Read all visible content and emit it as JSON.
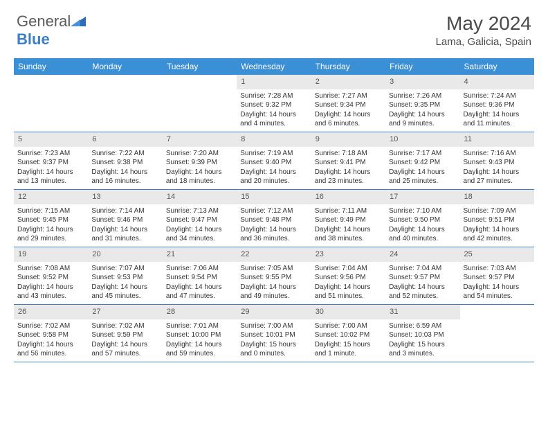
{
  "brand": {
    "part1": "General",
    "part2": "Blue"
  },
  "title": "May 2024",
  "location": "Lama, Galicia, Spain",
  "colors": {
    "header_bg": "#3b8fd4",
    "header_text": "#ffffff",
    "border": "#3b7fc4",
    "daynum_bg": "#e9e9e9",
    "text": "#333333",
    "logo_gray": "#5a5a5a",
    "logo_blue": "#3b7fc4"
  },
  "weekdays": [
    "Sunday",
    "Monday",
    "Tuesday",
    "Wednesday",
    "Thursday",
    "Friday",
    "Saturday"
  ],
  "weeks": [
    [
      null,
      null,
      null,
      {
        "n": "1",
        "sr": "7:28 AM",
        "ss": "9:32 PM",
        "dl": "14 hours and 4 minutes."
      },
      {
        "n": "2",
        "sr": "7:27 AM",
        "ss": "9:34 PM",
        "dl": "14 hours and 6 minutes."
      },
      {
        "n": "3",
        "sr": "7:26 AM",
        "ss": "9:35 PM",
        "dl": "14 hours and 9 minutes."
      },
      {
        "n": "4",
        "sr": "7:24 AM",
        "ss": "9:36 PM",
        "dl": "14 hours and 11 minutes."
      }
    ],
    [
      {
        "n": "5",
        "sr": "7:23 AM",
        "ss": "9:37 PM",
        "dl": "14 hours and 13 minutes."
      },
      {
        "n": "6",
        "sr": "7:22 AM",
        "ss": "9:38 PM",
        "dl": "14 hours and 16 minutes."
      },
      {
        "n": "7",
        "sr": "7:20 AM",
        "ss": "9:39 PM",
        "dl": "14 hours and 18 minutes."
      },
      {
        "n": "8",
        "sr": "7:19 AM",
        "ss": "9:40 PM",
        "dl": "14 hours and 20 minutes."
      },
      {
        "n": "9",
        "sr": "7:18 AM",
        "ss": "9:41 PM",
        "dl": "14 hours and 23 minutes."
      },
      {
        "n": "10",
        "sr": "7:17 AM",
        "ss": "9:42 PM",
        "dl": "14 hours and 25 minutes."
      },
      {
        "n": "11",
        "sr": "7:16 AM",
        "ss": "9:43 PM",
        "dl": "14 hours and 27 minutes."
      }
    ],
    [
      {
        "n": "12",
        "sr": "7:15 AM",
        "ss": "9:45 PM",
        "dl": "14 hours and 29 minutes."
      },
      {
        "n": "13",
        "sr": "7:14 AM",
        "ss": "9:46 PM",
        "dl": "14 hours and 31 minutes."
      },
      {
        "n": "14",
        "sr": "7:13 AM",
        "ss": "9:47 PM",
        "dl": "14 hours and 34 minutes."
      },
      {
        "n": "15",
        "sr": "7:12 AM",
        "ss": "9:48 PM",
        "dl": "14 hours and 36 minutes."
      },
      {
        "n": "16",
        "sr": "7:11 AM",
        "ss": "9:49 PM",
        "dl": "14 hours and 38 minutes."
      },
      {
        "n": "17",
        "sr": "7:10 AM",
        "ss": "9:50 PM",
        "dl": "14 hours and 40 minutes."
      },
      {
        "n": "18",
        "sr": "7:09 AM",
        "ss": "9:51 PM",
        "dl": "14 hours and 42 minutes."
      }
    ],
    [
      {
        "n": "19",
        "sr": "7:08 AM",
        "ss": "9:52 PM",
        "dl": "14 hours and 43 minutes."
      },
      {
        "n": "20",
        "sr": "7:07 AM",
        "ss": "9:53 PM",
        "dl": "14 hours and 45 minutes."
      },
      {
        "n": "21",
        "sr": "7:06 AM",
        "ss": "9:54 PM",
        "dl": "14 hours and 47 minutes."
      },
      {
        "n": "22",
        "sr": "7:05 AM",
        "ss": "9:55 PM",
        "dl": "14 hours and 49 minutes."
      },
      {
        "n": "23",
        "sr": "7:04 AM",
        "ss": "9:56 PM",
        "dl": "14 hours and 51 minutes."
      },
      {
        "n": "24",
        "sr": "7:04 AM",
        "ss": "9:57 PM",
        "dl": "14 hours and 52 minutes."
      },
      {
        "n": "25",
        "sr": "7:03 AM",
        "ss": "9:57 PM",
        "dl": "14 hours and 54 minutes."
      }
    ],
    [
      {
        "n": "26",
        "sr": "7:02 AM",
        "ss": "9:58 PM",
        "dl": "14 hours and 56 minutes."
      },
      {
        "n": "27",
        "sr": "7:02 AM",
        "ss": "9:59 PM",
        "dl": "14 hours and 57 minutes."
      },
      {
        "n": "28",
        "sr": "7:01 AM",
        "ss": "10:00 PM",
        "dl": "14 hours and 59 minutes."
      },
      {
        "n": "29",
        "sr": "7:00 AM",
        "ss": "10:01 PM",
        "dl": "15 hours and 0 minutes."
      },
      {
        "n": "30",
        "sr": "7:00 AM",
        "ss": "10:02 PM",
        "dl": "15 hours and 1 minute."
      },
      {
        "n": "31",
        "sr": "6:59 AM",
        "ss": "10:03 PM",
        "dl": "15 hours and 3 minutes."
      },
      null
    ]
  ],
  "labels": {
    "sunrise": "Sunrise: ",
    "sunset": "Sunset: ",
    "daylight": "Daylight: "
  }
}
